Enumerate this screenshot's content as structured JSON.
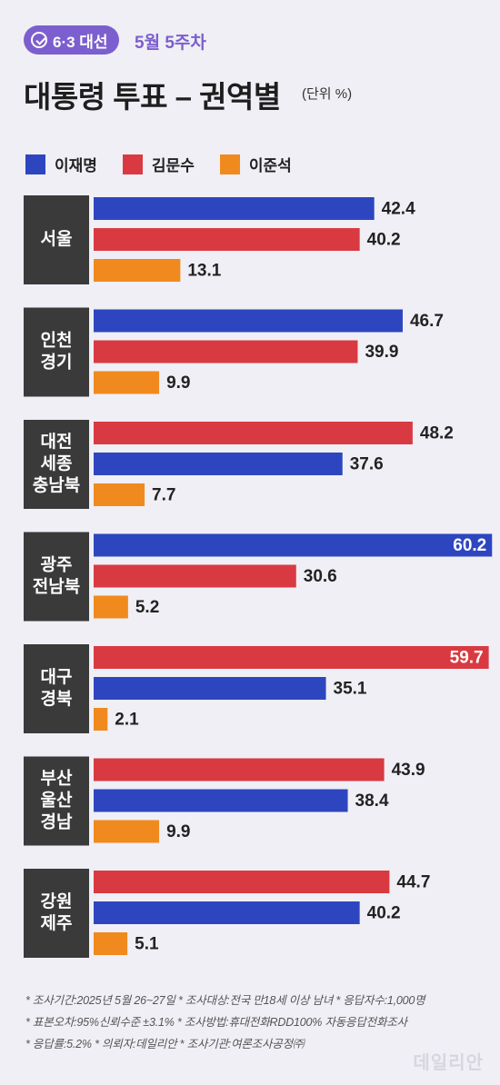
{
  "header": {
    "badge": "6·3 대선",
    "week": "5월 5주차",
    "title": "대통령 투표 – 권역별",
    "unit": "(단위 %)"
  },
  "colors": {
    "lee_jm": "#2d46c0",
    "kim_ms": "#d93a42",
    "lee_js": "#f08a1e",
    "label_bg": "#3a3a3a"
  },
  "chart_data": {
    "type": "bar",
    "orientation": "horizontal",
    "title": "대통령 투표 – 권역별",
    "unit": "%",
    "legend": [
      "이재명",
      "김문수",
      "이준석"
    ],
    "groups": [
      {
        "region": [
          "서울"
        ],
        "bars": [
          {
            "name": "이재명",
            "value": 42.4
          },
          {
            "name": "김문수",
            "value": 40.2
          },
          {
            "name": "이준석",
            "value": 13.1
          }
        ]
      },
      {
        "region": [
          "인천",
          "경기"
        ],
        "bars": [
          {
            "name": "이재명",
            "value": 46.7
          },
          {
            "name": "김문수",
            "value": 39.9
          },
          {
            "name": "이준석",
            "value": 9.9
          }
        ]
      },
      {
        "region": [
          "대전",
          "세종",
          "충남북"
        ],
        "bars": [
          {
            "name": "김문수",
            "value": 48.2
          },
          {
            "name": "이재명",
            "value": 37.6
          },
          {
            "name": "이준석",
            "value": 7.7
          }
        ]
      },
      {
        "region": [
          "광주",
          "전남북"
        ],
        "bars": [
          {
            "name": "이재명",
            "value": 60.2
          },
          {
            "name": "김문수",
            "value": 30.6
          },
          {
            "name": "이준석",
            "value": 5.2
          }
        ]
      },
      {
        "region": [
          "대구",
          "경북"
        ],
        "bars": [
          {
            "name": "김문수",
            "value": 59.7
          },
          {
            "name": "이재명",
            "value": 35.1
          },
          {
            "name": "이준석",
            "value": 2.1
          }
        ]
      },
      {
        "region": [
          "부산",
          "울산",
          "경남"
        ],
        "bars": [
          {
            "name": "김문수",
            "value": 43.9
          },
          {
            "name": "이재명",
            "value": 38.4
          },
          {
            "name": "이준석",
            "value": 9.9
          }
        ]
      },
      {
        "region": [
          "강원",
          "제주"
        ],
        "bars": [
          {
            "name": "김문수",
            "value": 44.7
          },
          {
            "name": "이재명",
            "value": 40.2
          },
          {
            "name": "이준석",
            "value": 5.1
          }
        ]
      }
    ]
  },
  "footnotes": [
    "* 조사기간:2025년 5월 26~27일  * 조사대상:전국 만18세 이상 남녀  * 응답자수:1,000명",
    "* 표본오차:95%신뢰수준 ±3.1%  * 조사방법:휴대전화RDD100% 자동응답전화조사",
    "* 응답률:5.2%  * 의뢰자:데일리안  * 조사기관:여론조사공정㈜"
  ],
  "logo": "데일리안"
}
